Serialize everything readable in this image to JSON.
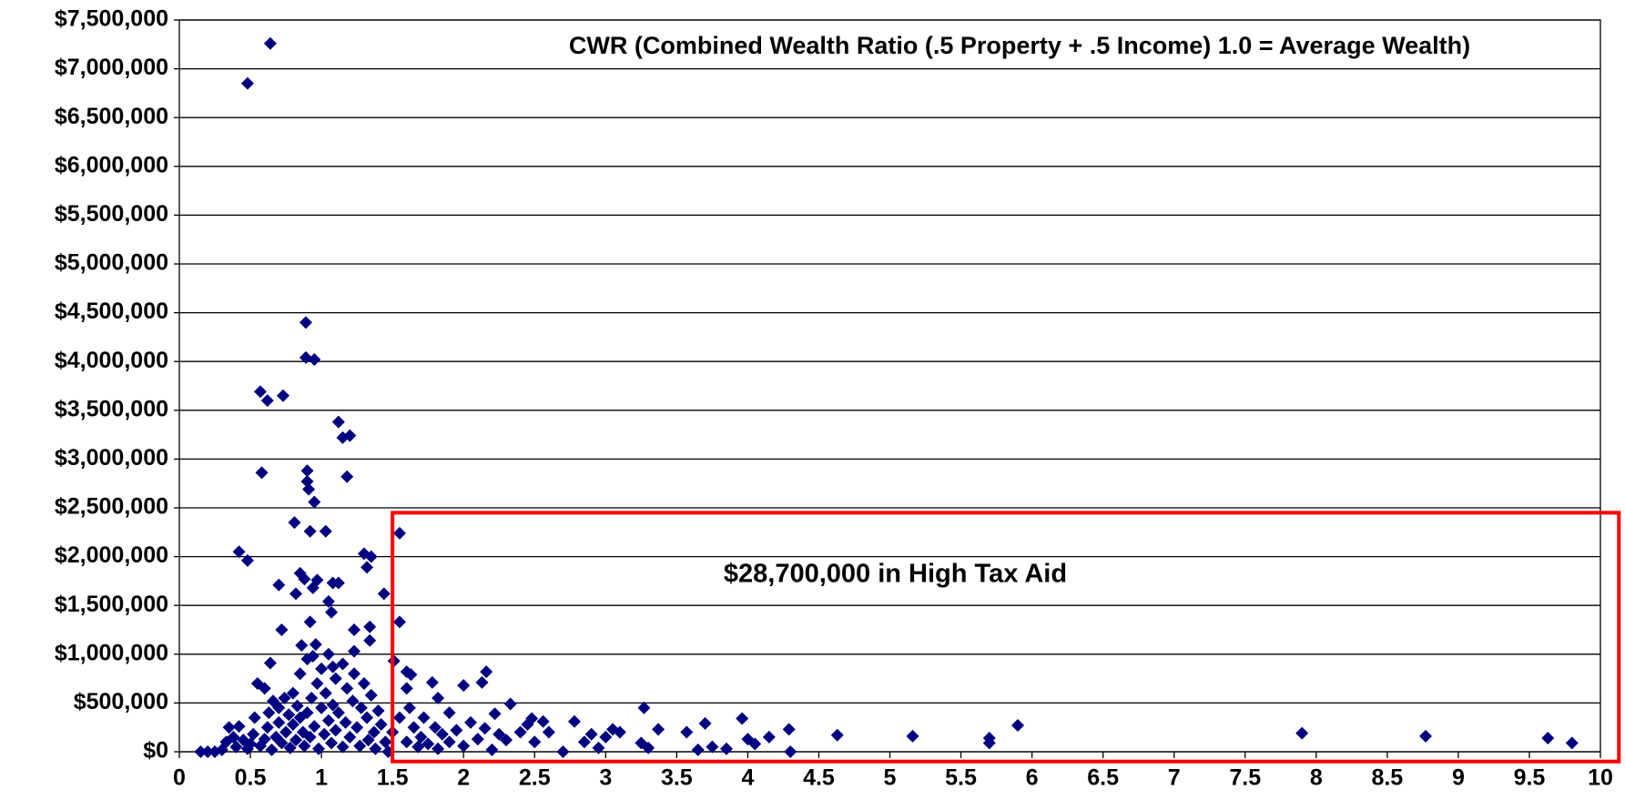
{
  "chart_data": {
    "type": "scatter",
    "title": "CWR (Combined Wealth Ratio (.5 Property + .5 Income) 1.0 = Average Wealth)",
    "color": "#000080",
    "grid": true,
    "highlight": {
      "text": "$28,700,000 in High Tax Aid",
      "color": "#ff0000",
      "xlim": [
        1.5,
        10.13
      ],
      "ylim": [
        -100000,
        2450000
      ]
    },
    "xlim": [
      0,
      10
    ],
    "ylim": [
      0,
      7500000
    ],
    "xticks": [
      0,
      0.5,
      1,
      1.5,
      2,
      2.5,
      3,
      3.5,
      4,
      4.5,
      5,
      5.5,
      6,
      6.5,
      7,
      7.5,
      8,
      8.5,
      9,
      9.5,
      10
    ],
    "yticks": [
      {
        "value": 0,
        "label": "$0"
      },
      {
        "value": 500000,
        "label": "$500,000"
      },
      {
        "value": 1000000,
        "label": "$1,000,000"
      },
      {
        "value": 1500000,
        "label": "$1,500,000"
      },
      {
        "value": 2000000,
        "label": "$2,000,000"
      },
      {
        "value": 2500000,
        "label": "$2,500,000"
      },
      {
        "value": 3000000,
        "label": "$3,000,000"
      },
      {
        "value": 3500000,
        "label": "$3,500,000"
      },
      {
        "value": 4000000,
        "label": "$4,000,000"
      },
      {
        "value": 4500000,
        "label": "$4,500,000"
      },
      {
        "value": 5000000,
        "label": "$5,000,000"
      },
      {
        "value": 5500000,
        "label": "$5,500,000"
      },
      {
        "value": 6000000,
        "label": "$6,000,000"
      },
      {
        "value": 6500000,
        "label": "$6,500,000"
      },
      {
        "value": 7000000,
        "label": "$7,000,000"
      },
      {
        "value": 7500000,
        "label": "$7,500,000"
      }
    ],
    "x": [
      0.48,
      0.64,
      0.89,
      0.89,
      0.95,
      0.57,
      0.62,
      0.73,
      1.12,
      1.15,
      1.2,
      0.58,
      1.18,
      0.9,
      0.9,
      0.91,
      0.95,
      0.81,
      0.92,
      1.03,
      1.55,
      0.42,
      0.48,
      1.3,
      1.35,
      1.32,
      0.7,
      0.85,
      0.88,
      0.94,
      0.97,
      1.08,
      1.12,
      0.82,
      1.44,
      1.05,
      0.92,
      1.55,
      0.72,
      1.23,
      1.34,
      1.07,
      0.86,
      1.23,
      1.34,
      1.51,
      0.64,
      0.94,
      1.08,
      1.6,
      1.63,
      1.78,
      1.82,
      2.0,
      2.13,
      2.16,
      2.33,
      2.22,
      2.48,
      2.56,
      2.78,
      3.27,
      3.37,
      3.57,
      3.7,
      3.96,
      4.29,
      4.63,
      5.16,
      5.7,
      5.7,
      5.9,
      7.9,
      8.77,
      9.63,
      9.8,
      0.15,
      0.2,
      4.3,
      0.25,
      0.3,
      0.33,
      0.35,
      0.38,
      0.4,
      0.42,
      0.45,
      0.48,
      0.5,
      0.52,
      0.53,
      0.55,
      0.57,
      0.6,
      0.6,
      0.62,
      0.63,
      0.65,
      0.66,
      0.68,
      0.7,
      0.7,
      0.72,
      0.74,
      0.75,
      0.77,
      0.78,
      0.8,
      0.8,
      0.82,
      0.83,
      0.85,
      0.85,
      0.87,
      0.88,
      0.9,
      0.9,
      0.92,
      0.93,
      0.95,
      0.96,
      0.97,
      0.98,
      1.0,
      1.0,
      1.02,
      1.03,
      1.05,
      1.05,
      1.07,
      1.08,
      1.1,
      1.1,
      1.12,
      1.15,
      1.15,
      1.17,
      1.18,
      1.2,
      1.22,
      1.23,
      1.25,
      1.27,
      1.28,
      1.3,
      1.32,
      1.33,
      1.35,
      1.37,
      1.38,
      1.4,
      1.42,
      1.45,
      1.47,
      1.5,
      1.55,
      1.6,
      1.6,
      1.62,
      1.65,
      1.68,
      1.7,
      1.72,
      1.75,
      1.8,
      1.82,
      1.85,
      1.9,
      1.9,
      1.95,
      2.0,
      2.05,
      2.1,
      2.15,
      2.2,
      2.25,
      2.3,
      2.4,
      2.45,
      2.5,
      2.6,
      2.7,
      2.85,
      2.9,
      2.95,
      3.0,
      3.05,
      3.1,
      3.25,
      3.3,
      3.65,
      3.75,
      3.85,
      4.0,
      4.05,
      4.15
    ],
    "values": [
      6850000,
      7260000,
      4400000,
      4040000,
      4020000,
      3690000,
      3600000,
      3650000,
      3380000,
      3220000,
      3240000,
      2860000,
      2820000,
      2880000,
      2770000,
      2690000,
      2560000,
      2350000,
      2260000,
      2260000,
      2240000,
      2050000,
      1960000,
      2030000,
      2000000,
      1890000,
      1710000,
      1830000,
      1770000,
      1680000,
      1760000,
      1730000,
      1730000,
      1620000,
      1620000,
      1540000,
      1330000,
      1330000,
      1250000,
      1250000,
      1280000,
      1430000,
      1090000,
      1030000,
      1140000,
      930000,
      910000,
      980000,
      870000,
      820000,
      790000,
      710000,
      550000,
      680000,
      710000,
      820000,
      490000,
      390000,
      340000,
      310000,
      310000,
      450000,
      230000,
      200000,
      290000,
      340000,
      230000,
      170000,
      160000,
      140000,
      90000,
      270000,
      190000,
      160000,
      140000,
      90000,
      0,
      0,
      0,
      0,
      20000,
      100000,
      250000,
      150000,
      50000,
      260000,
      120000,
      30000,
      80000,
      180000,
      350000,
      700000,
      60000,
      130000,
      650000,
      250000,
      400000,
      20000,
      520000,
      150000,
      450000,
      300000,
      90000,
      550000,
      200000,
      380000,
      40000,
      600000,
      280000,
      120000,
      470000,
      350000,
      800000,
      200000,
      60000,
      950000,
      400000,
      150000,
      550000,
      260000,
      1100000,
      700000,
      30000,
      450000,
      850000,
      180000,
      600000,
      320000,
      1000000,
      90000,
      480000,
      750000,
      220000,
      400000,
      50000,
      900000,
      300000,
      650000,
      150000,
      520000,
      800000,
      250000,
      60000,
      450000,
      700000,
      350000,
      120000,
      580000,
      200000,
      30000,
      420000,
      280000,
      100000,
      0,
      200000,
      350000,
      650000,
      100000,
      450000,
      250000,
      50000,
      150000,
      350000,
      80000,
      250000,
      30000,
      180000,
      400000,
      100000,
      220000,
      60000,
      300000,
      130000,
      240000,
      20000,
      180000,
      120000,
      200000,
      280000,
      100000,
      200000,
      0,
      100000,
      180000,
      40000,
      150000,
      230000,
      200000,
      90000,
      40000,
      20000,
      50000,
      30000,
      130000,
      80000,
      150000
    ]
  }
}
